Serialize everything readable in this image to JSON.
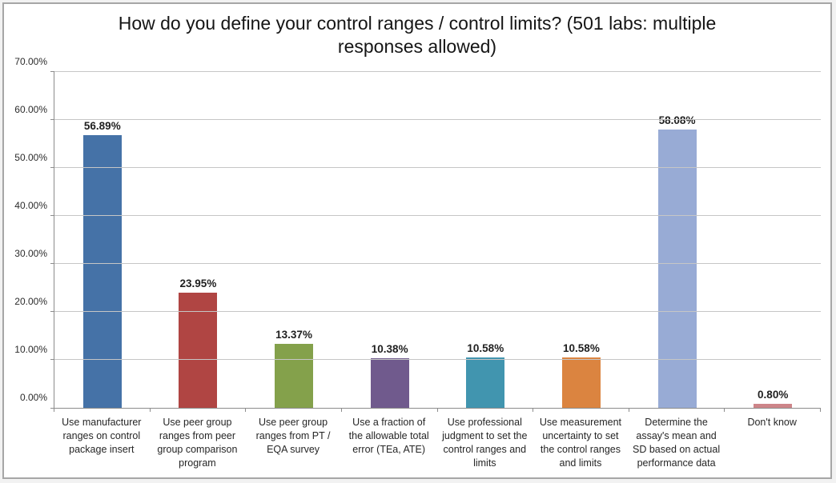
{
  "chart_data": {
    "type": "bar",
    "title": "How do you define your control ranges / control limits? (501 labs: multiple responses allowed)",
    "categories": [
      "Use manufacturer ranges on control package insert",
      "Use peer group ranges from peer group comparison program",
      "Use peer group ranges from PT / EQA survey",
      "Use a fraction of the allowable total error (TEa, ATE)",
      "Use professional judgment to set the control ranges and limits",
      "Use measurement uncertainty to set the control ranges and limits",
      "Determine the assay's mean and SD based on actual performance data",
      "Don't know"
    ],
    "values": [
      56.89,
      23.95,
      13.37,
      10.38,
      10.58,
      10.58,
      58.08,
      0.8
    ],
    "value_labels": [
      "56.89%",
      "23.95%",
      "13.37%",
      "10.38%",
      "10.58%",
      "10.58%",
      "58.08%",
      "0.80%"
    ],
    "bar_colors": [
      "#4572A7",
      "#B04543",
      "#84A14B",
      "#705A8D",
      "#4195AF",
      "#DB8440",
      "#98ABD5",
      "#CD8589"
    ],
    "xlabel": "",
    "ylabel": "",
    "ylim": [
      0,
      70
    ],
    "ytick_interval": 10,
    "ytick_labels": [
      "0.00%",
      "10.00%",
      "20.00%",
      "30.00%",
      "40.00%",
      "50.00%",
      "60.00%",
      "70.00%"
    ],
    "grid": "horizontal-only",
    "legend": "none",
    "colors": {
      "gridline": "#c6c6c6",
      "axis": "#8c8c8c",
      "title_text": "#151515",
      "value_label_text": "#1f1f1f",
      "category_text": "#262626",
      "plot_background": "#ffffff",
      "frame_border": "#a6a6a6"
    }
  }
}
